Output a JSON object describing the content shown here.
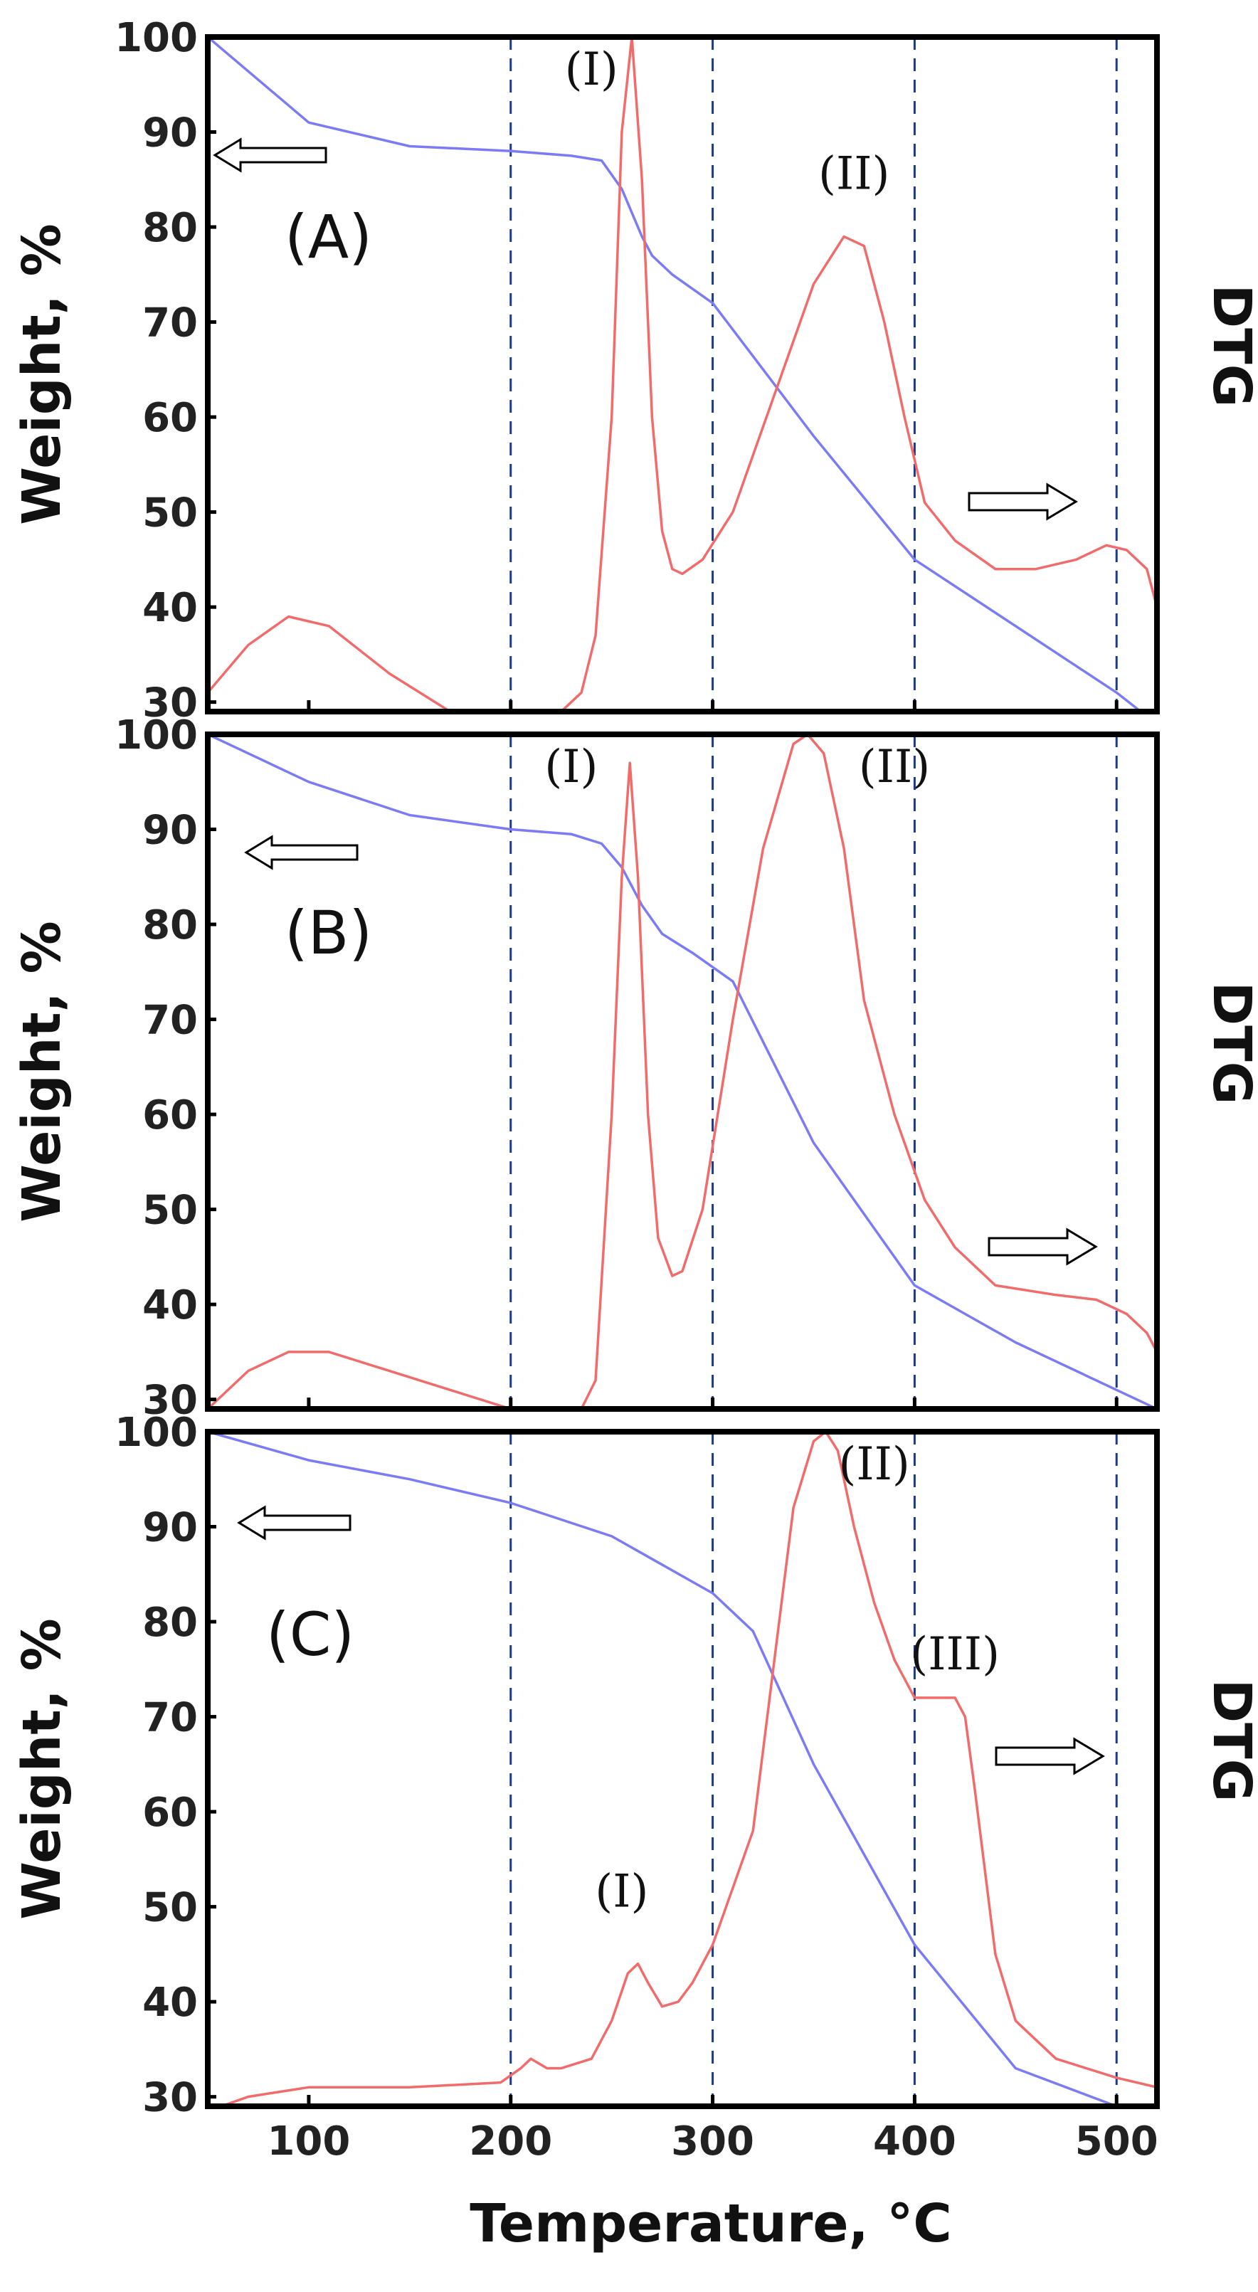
{
  "chart_data": {
    "type": "line",
    "x_ticks": [
      100,
      200,
      300,
      400,
      500
    ],
    "y_ticks": [
      30,
      40,
      50,
      60,
      70,
      80,
      90,
      100
    ],
    "xlim": [
      50,
      520
    ],
    "ylim": [
      29,
      100
    ],
    "xlabel": "Temperature, °C",
    "guide_lines_x": [
      200,
      300,
      400,
      500
    ],
    "colors": {
      "weight": "#7b7bf5",
      "dtg": "#f26b6b"
    },
    "panels": [
      {
        "label": "(A)",
        "ylabel": "Weight, %",
        "right_label": "DTG",
        "series": [
          {
            "name": "Weight",
            "color": "#7b7bf5",
            "x": [
              50,
              100,
              150,
              200,
              230,
              245,
              255,
              265,
              270,
              280,
              300,
              350,
              400,
              450,
              500,
              512
            ],
            "y": [
              100,
              91,
              88.5,
              88,
              87.5,
              87,
              84,
              79,
              77,
              75,
              72,
              58,
              45,
              38,
              31,
              29
            ]
          },
          {
            "name": "DTG",
            "color": "#f26b6b",
            "x": [
              50,
              70,
              90,
              110,
              140,
              170,
              200,
              215,
              225,
              235,
              242,
              250,
              255,
              260,
              265,
              270,
              275,
              280,
              285,
              295,
              310,
              330,
              350,
              365,
              375,
              385,
              395,
              405,
              420,
              440,
              460,
              480,
              495,
              505,
              515,
              520
            ],
            "y": [
              31,
              36,
              39,
              38,
              33,
              29,
              28.5,
              28.5,
              29,
              31,
              37,
              60,
              90,
              100,
              85,
              60,
              48,
              44,
              43.5,
              45,
              50,
              62,
              74,
              79,
              78,
              70,
              60,
              51,
              47,
              44,
              44,
              45,
              46.5,
              46,
              44,
              40
            ]
          }
        ],
        "peak_labels": [
          {
            "text": "(I)",
            "x": 240,
            "y": 95
          },
          {
            "text": "(II)",
            "x": 370,
            "y": 84
          }
        ]
      },
      {
        "label": "(B)",
        "ylabel": "Weight, %",
        "right_label": "DTG",
        "series": [
          {
            "name": "Weight",
            "color": "#7b7bf5",
            "x": [
              50,
              100,
              150,
              200,
              230,
              245,
              255,
              265,
              275,
              290,
              310,
              350,
              400,
              450,
              500,
              520
            ],
            "y": [
              100,
              95,
              91.5,
              90,
              89.5,
              88.5,
              86,
              82,
              79,
              77,
              74,
              57,
              42,
              36,
              31,
              29
            ]
          },
          {
            "name": "DTG",
            "color": "#f26b6b",
            "x": [
              50,
              70,
              90,
              110,
              140,
              170,
              200,
              215,
              225,
              235,
              242,
              250,
              255,
              259,
              263,
              268,
              273,
              280,
              285,
              295,
              310,
              325,
              340,
              347,
              355,
              365,
              375,
              390,
              405,
              420,
              440,
              470,
              490,
              505,
              515,
              520
            ],
            "y": [
              29,
              33,
              35,
              35,
              33,
              31,
              29,
              28.5,
              28.5,
              29,
              32,
              60,
              85,
              97,
              85,
              60,
              47,
              43,
              43.5,
              50,
              70,
              88,
              99,
              100,
              98,
              88,
              72,
              60,
              51,
              46,
              42,
              41,
              40.5,
              39,
              37,
              35
            ]
          }
        ],
        "peak_labels": [
          {
            "text": "(I)",
            "x": 230,
            "y": 95
          },
          {
            "text": "(II)",
            "x": 390,
            "y": 95
          }
        ]
      },
      {
        "label": "(C)",
        "ylabel": "Weight, %",
        "right_label": "DTG",
        "series": [
          {
            "name": "Weight",
            "color": "#7b7bf5",
            "x": [
              50,
              100,
              150,
              200,
              250,
              300,
              320,
              350,
              400,
              450,
              500,
              520
            ],
            "y": [
              100,
              97,
              95,
              92.5,
              89,
              83,
              79,
              65,
              46,
              33,
              29,
              28.5
            ]
          },
          {
            "name": "DTG",
            "color": "#f26b6b",
            "x": [
              50,
              70,
              100,
              150,
              195,
              205,
              210,
              218,
              225,
              240,
              250,
              258,
              263,
              268,
              275,
              283,
              290,
              300,
              310,
              320,
              330,
              340,
              350,
              356,
              362,
              370,
              380,
              390,
              400,
              410,
              420,
              425,
              430,
              440,
              450,
              470,
              500,
              520
            ],
            "y": [
              28.5,
              30,
              31,
              31,
              31.5,
              33,
              34,
              33,
              33,
              34,
              38,
              43,
              44,
              42,
              39.5,
              40,
              42,
              46,
              52,
              58,
              75,
              92,
              99,
              100,
              98,
              90,
              82,
              76,
              72,
              72,
              72,
              70,
              62,
              45,
              38,
              34,
              32,
              31
            ]
          }
        ],
        "peak_labels": [
          {
            "text": "(I)",
            "x": 255,
            "y": 50
          },
          {
            "text": "(II)",
            "x": 380,
            "y": 95
          },
          {
            "text": "(III)",
            "x": 420,
            "y": 75
          }
        ]
      }
    ]
  }
}
